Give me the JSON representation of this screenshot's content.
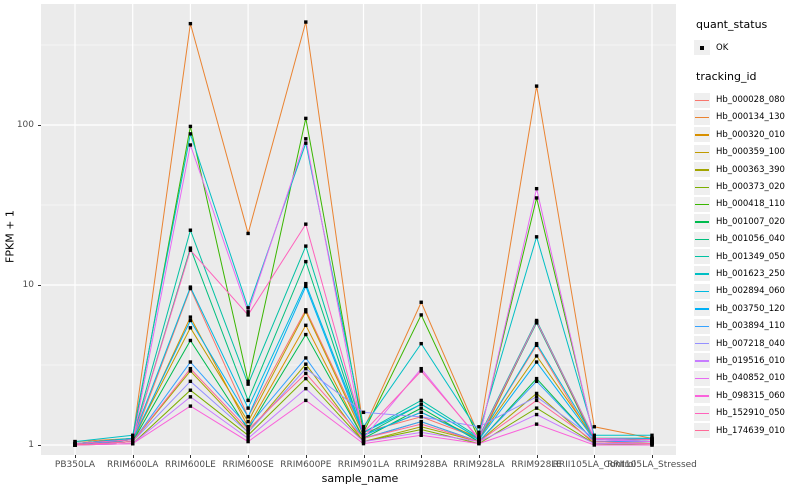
{
  "axes": {
    "x": {
      "label": "sample_name"
    },
    "y": {
      "label": "FPKM + 1",
      "ticks": [
        "1",
        "10",
        "100"
      ]
    }
  },
  "legend": {
    "quant_status": {
      "title": "quant_status",
      "items": [
        {
          "label": "OK",
          "glyph": "black-point"
        }
      ]
    },
    "tracking_id": {
      "title": "tracking_id"
    }
  },
  "colors": {
    "panel_background": "#EBEBEB",
    "gridline": "#FFFFFF",
    "point": "#000000",
    "tick_text": "#4D4D4D",
    "legend_key_background": "#EFEFEF"
  },
  "chart_data": {
    "type": "line",
    "title": "",
    "xlabel": "sample_name",
    "ylabel": "FPKM + 1",
    "y_scale": "log10",
    "ylim": [
      0.93,
      460
    ],
    "y_major_ticks": [
      1,
      10,
      100
    ],
    "y_minor_gridlines": [
      3.162,
      31.62,
      316.2
    ],
    "grid": "white major+minor horizontal, major vertical, on gray panel",
    "legend_position": "right",
    "point_marker": "small black square (quant_status OK)",
    "categories": [
      "PB350LA",
      "RRIM600LA",
      "RRIM600LE",
      "RRIM600SE",
      "RRIM600PE",
      "RRIM901LA",
      "RRIM928BA",
      "RRIM928LA",
      "RRIM928LE",
      "RRII105LA_Control",
      "RRII105LA_Stressed"
    ],
    "series": [
      {
        "name": "Hb_000028_080",
        "color": "#F8766D",
        "values": [
          1.02,
          1.05,
          9.5,
          1.5,
          7.0,
          1.2,
          1.5,
          1.1,
          4.2,
          1.05,
          1.05
        ]
      },
      {
        "name": "Hb_000134_130",
        "color": "#EA8331",
        "values": [
          1.05,
          1.1,
          430,
          21,
          440,
          1.25,
          7.8,
          1.15,
          175,
          1.3,
          1.1
        ]
      },
      {
        "name": "Hb_000320_010",
        "color": "#D89000",
        "values": [
          1.0,
          1.05,
          6.3,
          1.3,
          5.6,
          1.1,
          1.4,
          1.05,
          5.9,
          1.05,
          1.02
        ]
      },
      {
        "name": "Hb_000359_100",
        "color": "#C09B00",
        "values": [
          1.0,
          1.08,
          5.4,
          1.4,
          6.8,
          1.15,
          1.6,
          1.1,
          3.6,
          1.1,
          1.05
        ]
      },
      {
        "name": "Hb_000363_390",
        "color": "#A3A500",
        "values": [
          1.0,
          1.05,
          2.9,
          1.2,
          3.2,
          1.05,
          1.3,
          1.05,
          2.1,
          1.02,
          1.02
        ]
      },
      {
        "name": "Hb_000373_020",
        "color": "#7CAE00",
        "values": [
          1.0,
          1.02,
          2.2,
          1.15,
          2.6,
          1.05,
          1.25,
          1.02,
          1.7,
          1.02,
          1.0
        ]
      },
      {
        "name": "Hb_000418_110",
        "color": "#39B600",
        "values": [
          1.02,
          1.1,
          98,
          2.5,
          110,
          1.2,
          6.5,
          1.1,
          35,
          1.1,
          1.1
        ]
      },
      {
        "name": "Hb_001007_020",
        "color": "#00BB4E",
        "values": [
          1.0,
          1.05,
          4.5,
          1.25,
          4.9,
          1.1,
          1.7,
          1.05,
          2.6,
          1.05,
          1.05
        ]
      },
      {
        "name": "Hb_001056_040",
        "color": "#00BF7D",
        "values": [
          1.0,
          1.08,
          17,
          1.9,
          14,
          1.15,
          1.8,
          1.1,
          5.8,
          1.08,
          1.08
        ]
      },
      {
        "name": "Hb_001349_050",
        "color": "#00C1A3",
        "values": [
          1.02,
          1.1,
          22,
          2.4,
          17.5,
          1.2,
          1.9,
          1.12,
          6.0,
          1.1,
          1.1
        ]
      },
      {
        "name": "Hb_001623_250",
        "color": "#00BFC4",
        "values": [
          1.05,
          1.15,
          88,
          7.2,
          77,
          1.3,
          4.3,
          1.2,
          20,
          1.15,
          1.15
        ]
      },
      {
        "name": "Hb_002894_060",
        "color": "#00BAE0",
        "values": [
          1.02,
          1.1,
          9.7,
          1.7,
          10.2,
          1.2,
          1.8,
          1.1,
          4.3,
          1.1,
          1.1
        ]
      },
      {
        "name": "Hb_003750_120",
        "color": "#00B0F6",
        "values": [
          1.0,
          1.08,
          6.0,
          1.5,
          9.8,
          1.15,
          1.6,
          1.08,
          3.3,
          1.08,
          1.05
        ]
      },
      {
        "name": "Hb_003894_110",
        "color": "#35A2FF",
        "values": [
          1.0,
          1.05,
          3.3,
          1.3,
          3.5,
          1.1,
          1.4,
          1.05,
          2.5,
          1.05,
          1.05
        ]
      },
      {
        "name": "Hb_007218_040",
        "color": "#9590FF",
        "values": [
          1.0,
          1.05,
          2.5,
          1.2,
          3.0,
          1.6,
          1.5,
          1.3,
          2.0,
          1.1,
          1.05
        ]
      },
      {
        "name": "Hb_019516_010",
        "color": "#C77CFF",
        "values": [
          1.0,
          1.02,
          2.0,
          1.1,
          2.25,
          1.05,
          1.2,
          1.05,
          1.55,
          1.02,
          1.02
        ]
      },
      {
        "name": "Hb_040852_010",
        "color": "#E76BF3",
        "values": [
          1.0,
          1.05,
          75,
          6.8,
          82,
          1.1,
          3.0,
          1.08,
          40,
          1.08,
          1.05
        ]
      },
      {
        "name": "Hb_098315_060",
        "color": "#FA62DB",
        "values": [
          1.0,
          1.02,
          1.75,
          1.05,
          1.9,
          1.02,
          1.15,
          1.02,
          1.35,
          1.0,
          1.0
        ]
      },
      {
        "name": "Hb_152910_050",
        "color": "#FF62BC",
        "values": [
          1.02,
          1.08,
          16.5,
          6.5,
          24,
          1.2,
          2.9,
          1.1,
          5.9,
          1.1,
          1.08
        ]
      },
      {
        "name": "Hb_174639_010",
        "color": "#FF6A98",
        "values": [
          1.0,
          1.05,
          3.0,
          1.25,
          2.8,
          1.1,
          1.35,
          1.05,
          1.9,
          1.05,
          1.02
        ]
      }
    ]
  }
}
